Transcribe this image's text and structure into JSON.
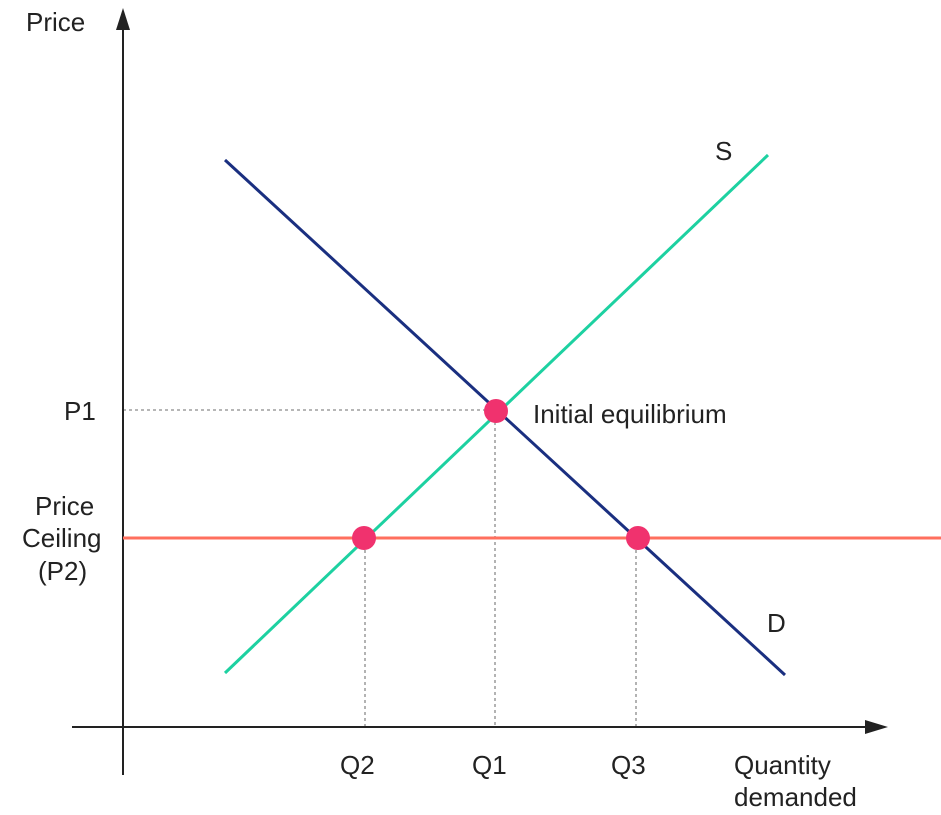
{
  "colors": {
    "axis": "#222222",
    "demand": "#1a2f80",
    "supply": "#1dd1a1",
    "ceiling": "#ff6f5e",
    "point": "#f0326e",
    "guide": "#8a8a8a"
  },
  "axes": {
    "y_label": "Price",
    "x_label_line1": "Quantity",
    "x_label_line2": "demanded"
  },
  "price_labels": {
    "p1": "P1",
    "ceiling_line1": "Price",
    "ceiling_line2": "Ceiling",
    "ceiling_line3": "(P2)"
  },
  "quantity_labels": {
    "q2": "Q2",
    "q1": "Q1",
    "q3": "Q3"
  },
  "curve_labels": {
    "supply": "S",
    "demand": "D"
  },
  "annotations": {
    "equilibrium": "Initial equilibrium"
  },
  "icons": {
    "y_arrow": "arrow-up-icon",
    "x_arrow": "arrow-right-icon"
  }
}
